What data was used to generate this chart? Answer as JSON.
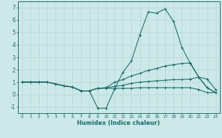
{
  "title": "",
  "xlabel": "Humidex (Indice chaleur)",
  "xlim": [
    -0.5,
    23.5
  ],
  "ylim": [
    -1.5,
    7.5
  ],
  "xticks": [
    0,
    1,
    2,
    3,
    4,
    5,
    6,
    7,
    8,
    9,
    10,
    11,
    12,
    13,
    14,
    15,
    16,
    17,
    18,
    19,
    20,
    21,
    22,
    23
  ],
  "yticks": [
    -1,
    0,
    1,
    2,
    3,
    4,
    5,
    6,
    7
  ],
  "background_color": "#cce8e8",
  "line_color": "#1a6b6b",
  "grid_color": "#b8d8d8",
  "lines": [
    {
      "x": [
        0,
        1,
        2,
        3,
        4,
        5,
        6,
        7,
        8,
        9,
        10,
        11,
        12,
        13,
        14,
        15,
        16,
        17,
        18,
        19,
        20,
        21,
        22,
        23
      ],
      "y": [
        1.0,
        1.0,
        1.0,
        1.0,
        0.85,
        0.7,
        0.6,
        0.3,
        0.3,
        -1.1,
        -1.1,
        0.45,
        1.8,
        2.7,
        4.8,
        6.65,
        6.55,
        6.9,
        5.9,
        3.8,
        2.5,
        1.4,
        1.25,
        0.4
      ]
    },
    {
      "x": [
        0,
        1,
        2,
        3,
        4,
        5,
        6,
        7,
        8,
        9,
        10,
        11,
        12,
        13,
        14,
        15,
        16,
        17,
        18,
        19,
        20,
        21,
        22,
        23
      ],
      "y": [
        1.0,
        1.0,
        1.0,
        1.0,
        0.85,
        0.7,
        0.6,
        0.3,
        0.3,
        0.5,
        0.55,
        1.0,
        1.2,
        1.5,
        1.7,
        1.95,
        2.1,
        2.3,
        2.4,
        2.5,
        2.55,
        1.4,
        0.55,
        0.15
      ]
    },
    {
      "x": [
        0,
        1,
        2,
        3,
        4,
        5,
        6,
        7,
        8,
        9,
        10,
        11,
        12,
        13,
        14,
        15,
        16,
        17,
        18,
        19,
        20,
        21,
        22,
        23
      ],
      "y": [
        1.0,
        1.0,
        1.0,
        1.0,
        0.85,
        0.7,
        0.6,
        0.3,
        0.3,
        0.5,
        0.55,
        0.65,
        0.75,
        0.9,
        1.0,
        1.05,
        1.1,
        1.15,
        1.2,
        1.2,
        1.25,
        1.4,
        0.55,
        0.15
      ]
    },
    {
      "x": [
        0,
        1,
        2,
        3,
        4,
        5,
        6,
        7,
        8,
        9,
        10,
        11,
        12,
        13,
        14,
        15,
        16,
        17,
        18,
        19,
        20,
        21,
        22,
        23
      ],
      "y": [
        1.0,
        1.0,
        1.0,
        1.0,
        0.85,
        0.7,
        0.6,
        0.3,
        0.3,
        0.5,
        0.5,
        0.5,
        0.5,
        0.5,
        0.55,
        0.55,
        0.55,
        0.55,
        0.55,
        0.55,
        0.55,
        0.4,
        0.15,
        0.15
      ]
    }
  ]
}
